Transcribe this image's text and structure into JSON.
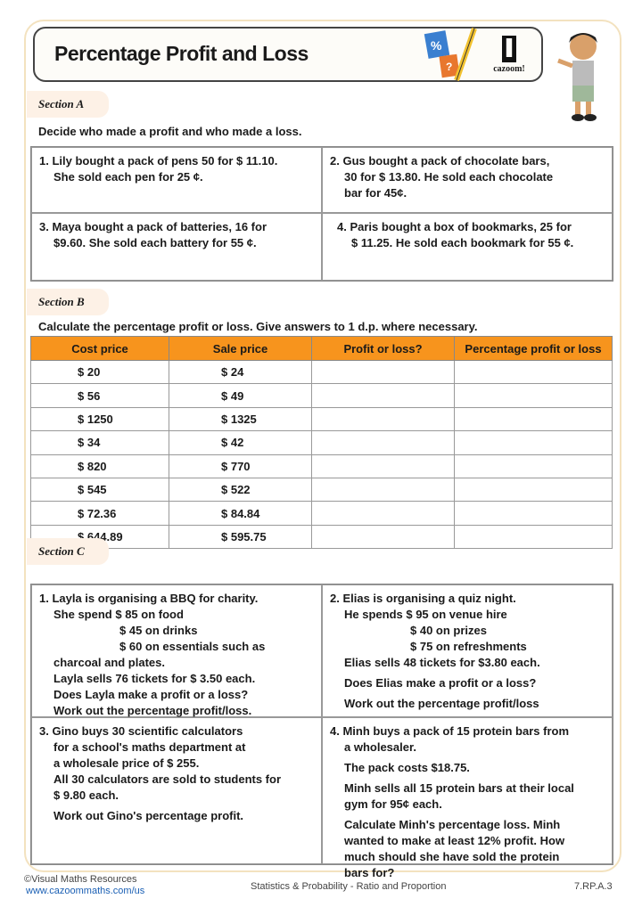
{
  "title": "Percentage Profit and Loss",
  "logo_text": "cazoom!",
  "section_a": {
    "label": "Section A",
    "instruction": "Decide who made a profit and who made a loss.",
    "questions": [
      [
        "1. Lily bought a pack of pens 50 for $ 11.10.",
        "She sold each pen for 25 ¢."
      ],
      [
        "2. Gus bought a pack of chocolate bars,",
        "30 for $ 13.80. He sold each chocolate",
        "bar for 45¢."
      ],
      [
        "3. Maya bought a pack of batteries, 16 for",
        "$9.60. She sold each battery for 55 ¢."
      ],
      [
        "4.  Paris bought a box of bookmarks, 25 for",
        "$ 11.25. He sold each bookmark for 55 ¢."
      ]
    ]
  },
  "section_b": {
    "label": "Section B",
    "instruction": "Calculate the percentage profit or loss. Give answers to 1 d.p. where necessary.",
    "headers": [
      "Cost price",
      "Sale price",
      "Profit or loss?",
      "Percentage profit or loss"
    ],
    "rows": [
      [
        "$ 20",
        "$ 24"
      ],
      [
        "$ 56",
        "$ 49"
      ],
      [
        "$ 1250",
        "$ 1325"
      ],
      [
        "$ 34",
        "$ 42"
      ],
      [
        "$ 820",
        "$ 770"
      ],
      [
        "$ 545",
        "$ 522"
      ],
      [
        "$ 72.36",
        "$ 84.84"
      ],
      [
        "$ 644.89",
        "$ 595.75"
      ]
    ],
    "header_color": "#f7941d"
  },
  "section_c": {
    "label": "Section C",
    "q1": [
      "1. Layla is organising a BBQ for charity.",
      "She spend $ 85 on food",
      "$ 45 on drinks",
      "$ 60 on essentials such as",
      "charcoal and plates.",
      "Layla sells 76 tickets for $ 3.50 each.",
      "Does Layla make a profit or a loss?",
      "Work out the percentage profit/loss."
    ],
    "q2": [
      "2. Elias is organising a quiz night.",
      "He spends $ 95 on venue hire",
      "$ 40 on prizes",
      "$ 75 on refreshments",
      "Elias sells 48 tickets for $3.80 each.",
      "Does Elias make a profit or a loss?",
      "Work out the percentage profit/loss"
    ],
    "q3": [
      "3. Gino buys 30 scientific calculators",
      "for a school's maths department at",
      "a wholesale price of $ 255.",
      "All 30 calculators are sold to students for",
      "$ 9.80 each.",
      "Work out Gino's percentage profit."
    ],
    "q4": [
      "4.  Minh buys a pack of 15 protein bars from",
      "a wholesaler.",
      "The pack costs $18.75.",
      "Minh sells all 15 protein bars at their local",
      "gym for 95¢ each.",
      "Calculate Minh's percentage loss. Minh",
      "wanted to make at least 12% profit. How",
      "much should she have sold the protein",
      "bars for?"
    ]
  },
  "footer": {
    "copyright": "©Visual Maths Resources",
    "url": "www.cazoommaths.com/us",
    "topic": "Statistics & Probability - Ratio and Proportion",
    "code": "7.RP.A.3"
  }
}
